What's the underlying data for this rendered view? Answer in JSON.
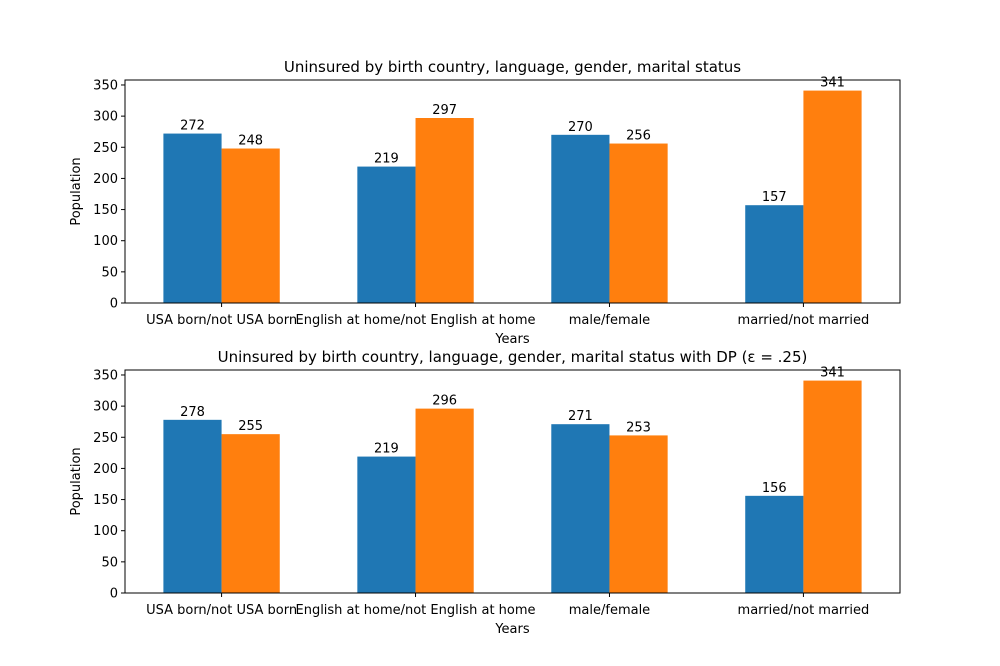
{
  "chart_data": [
    {
      "type": "bar",
      "title": "Uninsured by birth country, language, gender, marital status",
      "xlabel": "Years",
      "ylabel": "Population",
      "categories": [
        "USA born/not USA born",
        "English at home/not English at home",
        "male/female",
        "married/not married"
      ],
      "series": [
        {
          "values": [
            272,
            219,
            270,
            157
          ],
          "color": "#1f77b4"
        },
        {
          "values": [
            248,
            297,
            256,
            341
          ],
          "color": "#ff7f0e"
        }
      ],
      "ylim": [
        0,
        358
      ],
      "yticks": [
        0,
        50,
        100,
        150,
        200,
        250,
        300,
        350
      ],
      "grid": false
    },
    {
      "type": "bar",
      "title": "Uninsured by birth country, language, gender, marital status with DP (ε = .25)",
      "xlabel": "Years",
      "ylabel": "Population",
      "categories": [
        "USA born/not USA born",
        "English at home/not English at home",
        "male/female",
        "married/not married"
      ],
      "series": [
        {
          "values": [
            278,
            219,
            271,
            156
          ],
          "color": "#1f77b4"
        },
        {
          "values": [
            255,
            296,
            253,
            341
          ],
          "color": "#ff7f0e"
        }
      ],
      "ylim": [
        0,
        358
      ],
      "yticks": [
        0,
        50,
        100,
        150,
        200,
        250,
        300,
        350
      ],
      "grid": false
    }
  ]
}
